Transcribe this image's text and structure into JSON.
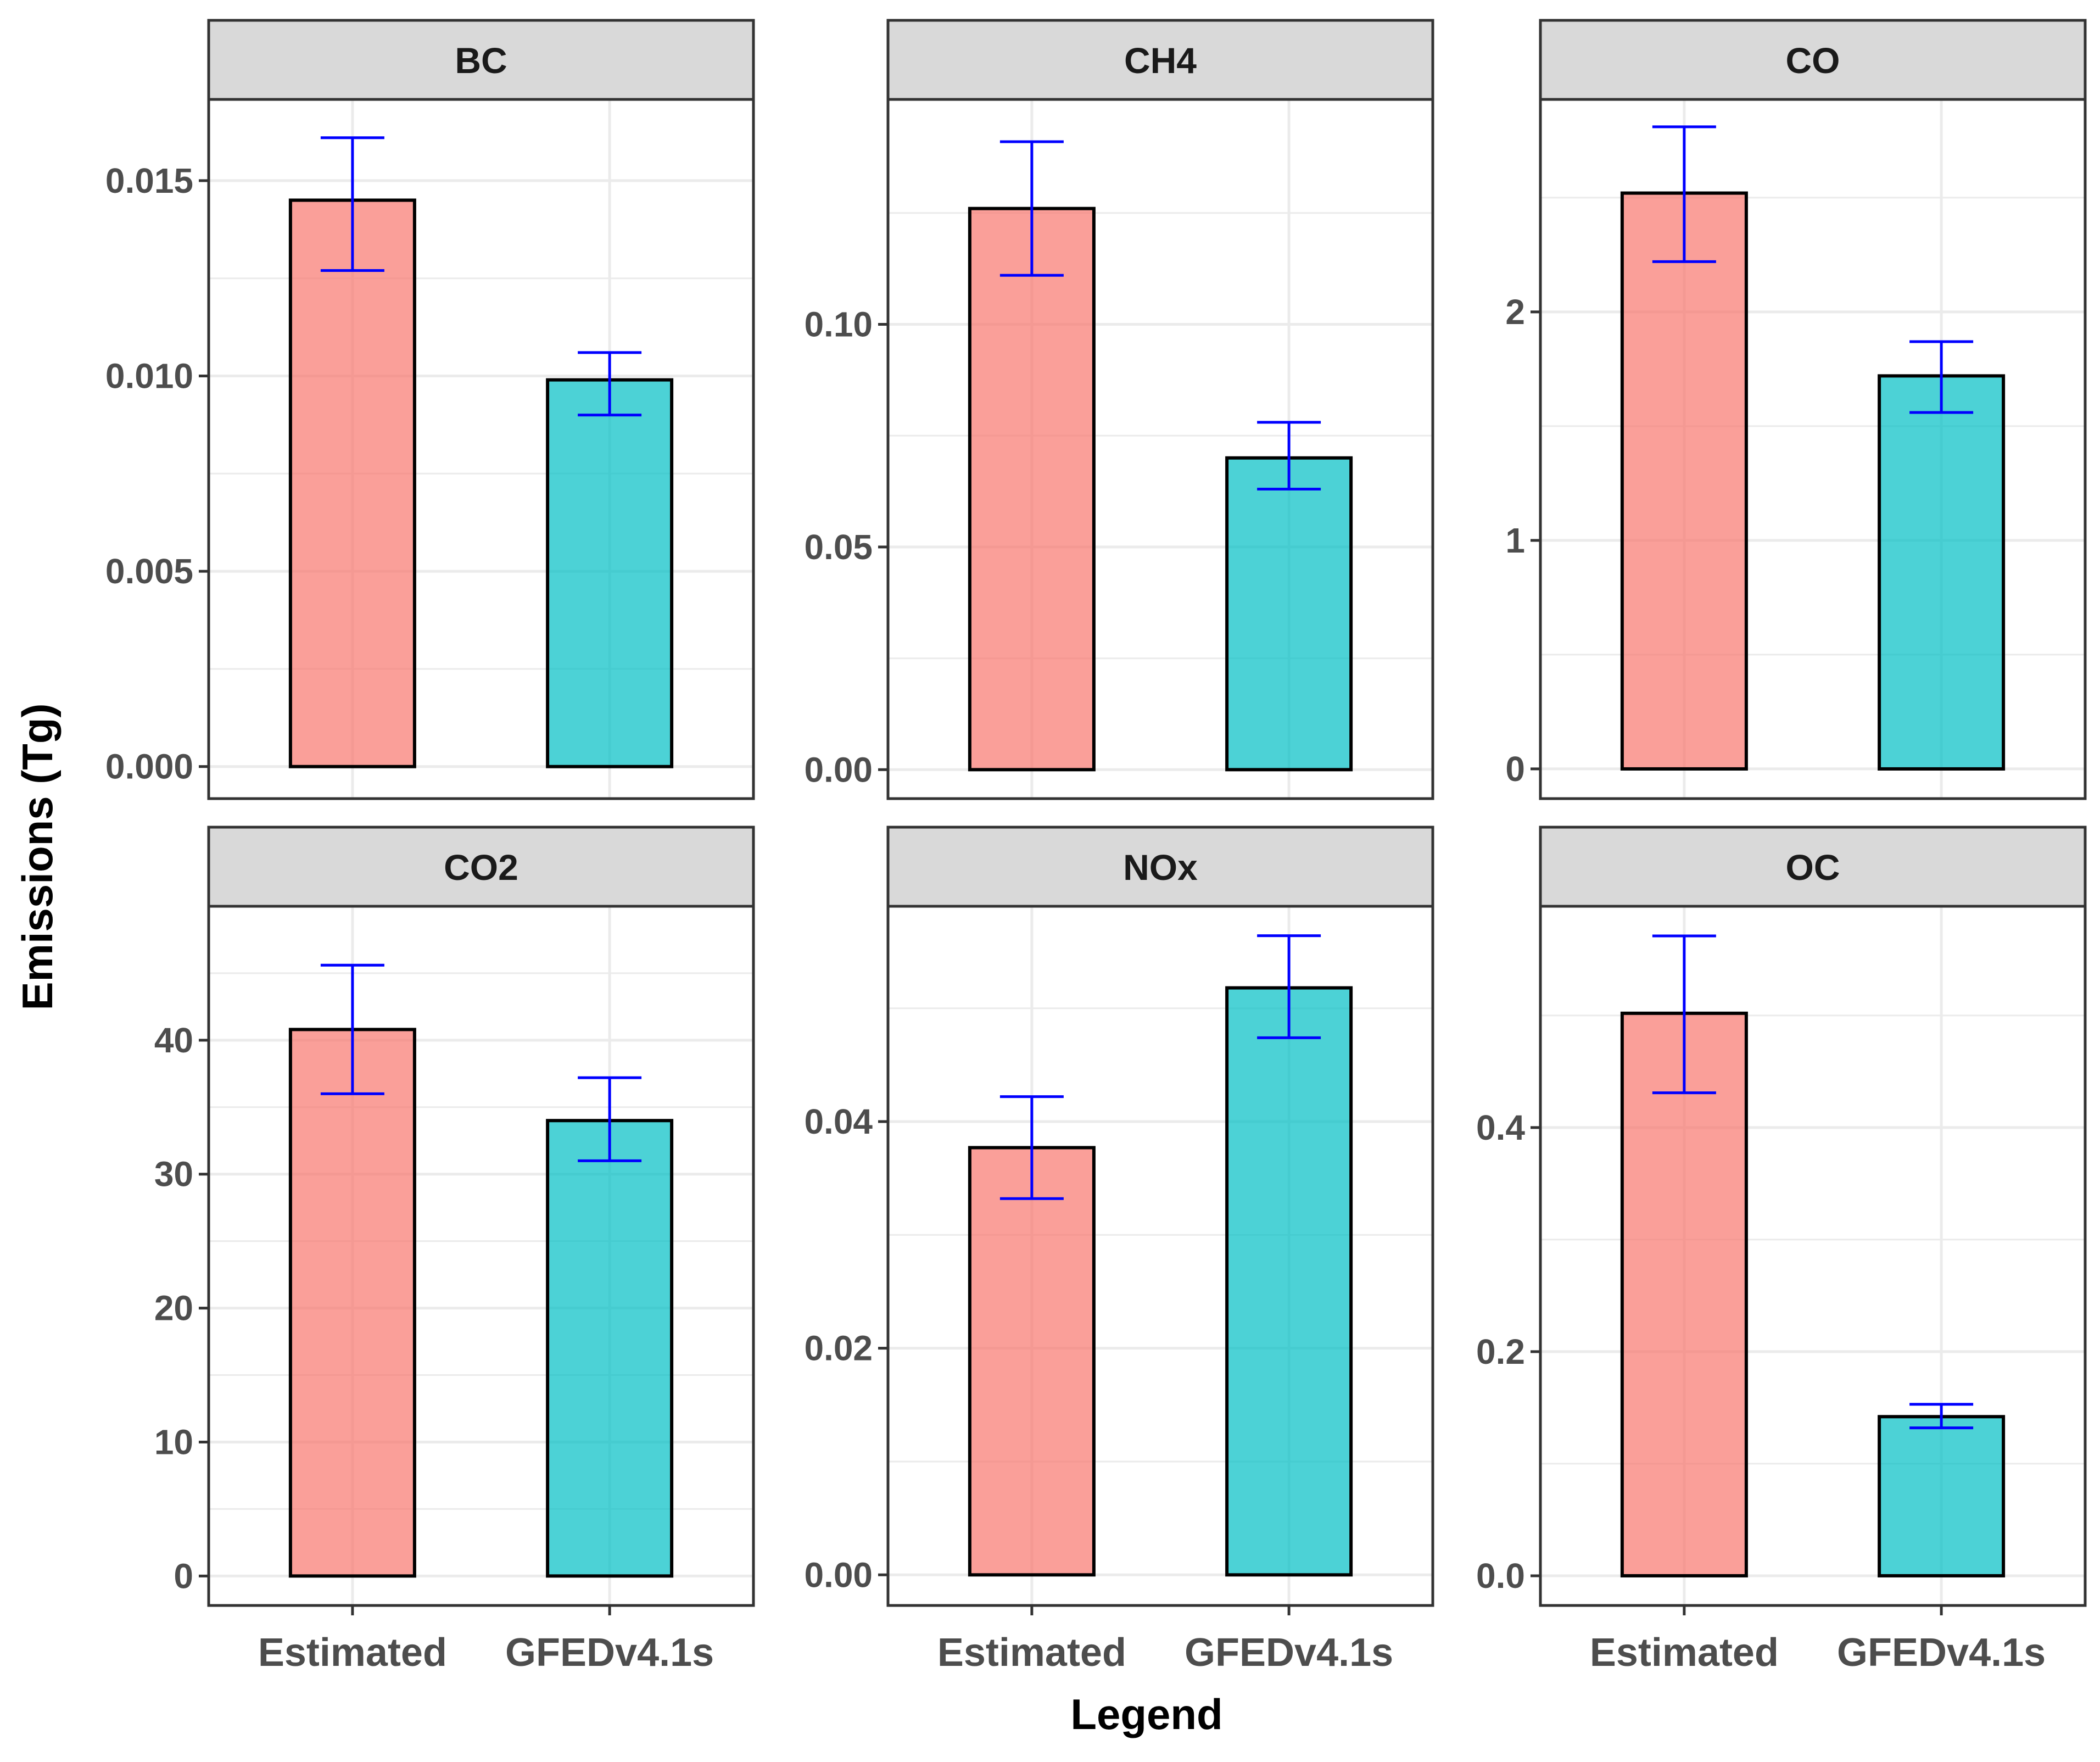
{
  "chart_data": {
    "type": "bar",
    "xlabel": "Legend",
    "ylabel": "Emissions (Tg)",
    "categories": [
      "Estimated",
      "GFEDv4.1s"
    ],
    "colors": {
      "Estimated": "#F8766D",
      "GFEDv4.1s": "#00BFC4",
      "error_bar": "#0000FF",
      "strip_fill": "#D9D9D9",
      "grid": "#EBEBEB",
      "frame": "#333333"
    },
    "panels": [
      {
        "title": "BC",
        "ylim": [
          -0.00082,
          0.01708
        ],
        "ticks": [
          0,
          0.005,
          0.01,
          0.015
        ],
        "tick_labels": [
          "0.000",
          "0.005",
          "0.010",
          "0.015"
        ],
        "values": [
          0.0145,
          0.0099
        ],
        "error_low": [
          0.0127,
          0.009
        ],
        "error_high": [
          0.0161,
          0.0106
        ]
      },
      {
        "title": "CH4",
        "ylim": [
          -0.0065,
          0.1505
        ],
        "ticks": [
          0,
          0.05,
          0.1
        ],
        "tick_labels": [
          "0.00",
          "0.05",
          "0.10"
        ],
        "values": [
          0.126,
          0.07
        ],
        "error_low": [
          0.111,
          0.063
        ],
        "error_high": [
          0.141,
          0.078
        ]
      },
      {
        "title": "CO",
        "ylim": [
          -0.13,
          2.93
        ],
        "ticks": [
          0,
          1,
          2
        ],
        "tick_labels": [
          "0",
          "1",
          "2"
        ],
        "values": [
          2.52,
          1.72
        ],
        "error_low": [
          2.22,
          1.56
        ],
        "error_high": [
          2.81,
          1.87
        ]
      },
      {
        "title": "CO2",
        "ylim": [
          -2.2,
          50.0
        ],
        "ticks": [
          0,
          10,
          20,
          30,
          40
        ],
        "tick_labels": [
          "0",
          "10",
          "20",
          "30",
          "40"
        ],
        "values": [
          40.8,
          34.0
        ],
        "error_low": [
          36.0,
          31.0
        ],
        "error_high": [
          45.6,
          37.2
        ]
      },
      {
        "title": "NOx",
        "ylim": [
          -0.0027,
          0.059
        ],
        "ticks": [
          0,
          0.02,
          0.04
        ],
        "tick_labels": [
          "0.00",
          "0.02",
          "0.04"
        ],
        "values": [
          0.0377,
          0.0518
        ],
        "error_low": [
          0.0332,
          0.0474
        ],
        "error_high": [
          0.0422,
          0.0564
        ]
      },
      {
        "title": "OC",
        "ylim": [
          -0.0265,
          0.5975
        ],
        "ticks": [
          0,
          0.2,
          0.4
        ],
        "tick_labels": [
          "0.0",
          "0.2",
          "0.4"
        ],
        "values": [
          0.502,
          0.142
        ],
        "error_low": [
          0.431,
          0.132
        ],
        "error_high": [
          0.571,
          0.153
        ]
      }
    ]
  }
}
